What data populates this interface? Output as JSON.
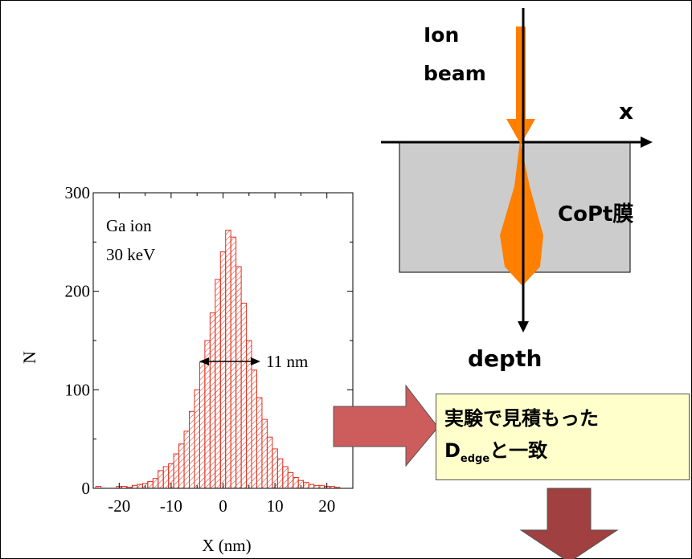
{
  "histogram": {
    "y_axis_label": "N",
    "x_axis_label": "X (nm)",
    "y_ticks": [
      "0",
      "100",
      "200",
      "300"
    ],
    "x_ticks": [
      "-20",
      "-10",
      "0",
      "10",
      "20"
    ],
    "legend_line1": "Ga ion",
    "legend_line2": "30 keV",
    "width_label": "11 nm",
    "bar_color": "#e0301e"
  },
  "chart_data": {
    "type": "bar",
    "title": "",
    "xlabel": "X (nm)",
    "ylabel": "N",
    "xlim": [
      -25,
      25
    ],
    "ylim": [
      0,
      300
    ],
    "bin_width": 1,
    "x": [
      -24,
      -23,
      -22,
      -21,
      -20,
      -19,
      -18,
      -17,
      -16,
      -15,
      -14,
      -13,
      -12,
      -11,
      -10,
      -9,
      -8,
      -7,
      -6,
      -5,
      -4,
      -3,
      -2,
      -1,
      0,
      1,
      2,
      3,
      4,
      5,
      6,
      7,
      8,
      9,
      10,
      11,
      12,
      13,
      14,
      15,
      16,
      17,
      18,
      19,
      20,
      21,
      22,
      23,
      24
    ],
    "values": [
      2,
      0,
      0,
      0,
      2,
      2,
      1,
      3,
      4,
      5,
      7,
      10,
      18,
      22,
      25,
      35,
      45,
      58,
      78,
      100,
      128,
      150,
      178,
      212,
      240,
      262,
      255,
      225,
      188,
      150,
      120,
      92,
      70,
      52,
      40,
      30,
      22,
      16,
      11,
      8,
      6,
      4,
      3,
      3,
      2,
      2,
      1,
      0,
      0
    ],
    "annotations": [
      {
        "text": "Ga ion 30 keV"
      },
      {
        "text": "11 nm",
        "x_from": -5.5,
        "x_to": 5.5,
        "y": 139
      }
    ]
  },
  "beam_diagram": {
    "ion_label_line1": "Ion",
    "ion_label_line2": "beam",
    "x_axis_label": "x",
    "film_label": "CoPt膜",
    "depth_label": "depth",
    "film_color": "#cccccc",
    "beam_color": "#ff7f00"
  },
  "note": {
    "line1": "実験で見積もった",
    "d_main": "D",
    "d_sub": "edge",
    "line2_rest": "と一致",
    "box_color": "#ffffcc"
  },
  "arrows": {
    "right_arrow_color": "#cd5c5c",
    "down_arrow_color": "#a04040"
  }
}
